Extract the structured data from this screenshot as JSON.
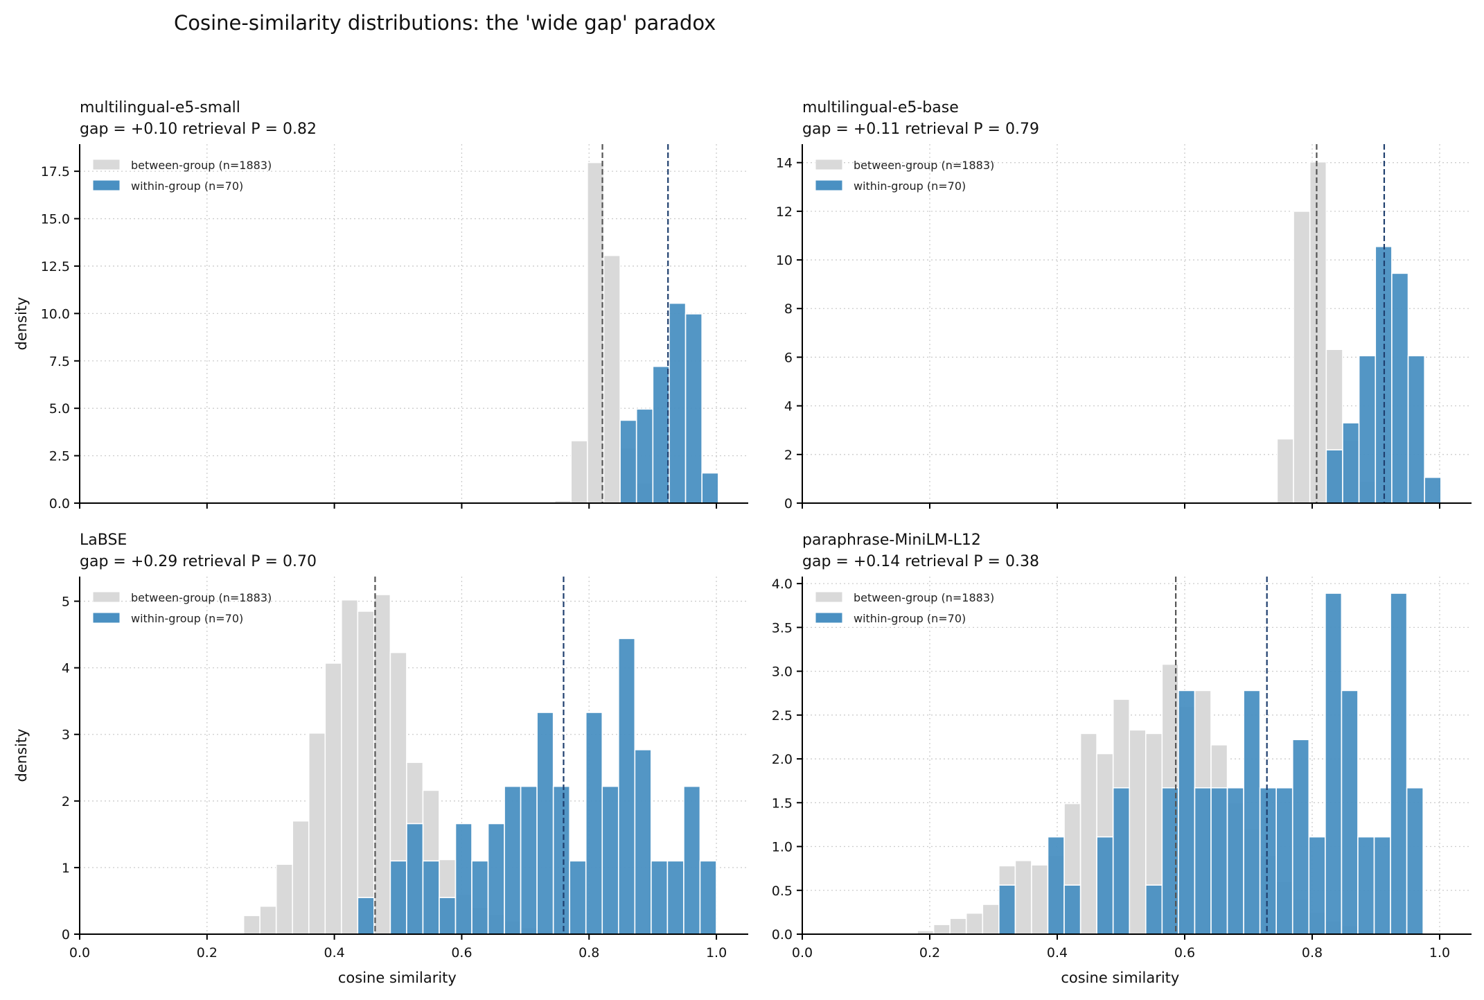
{
  "figure": {
    "title": "Cosine-similarity distributions: the 'wide gap' paradox"
  },
  "colors": {
    "between": "#d9d9d9",
    "within": "#4a90c2",
    "between_mean": "#555555",
    "within_mean": "#1f3f6e",
    "grid": "#cccccc"
  },
  "chart_data": [
    {
      "type": "bar",
      "subtype": "histogram",
      "title": "multilingual-e5-small",
      "subtitle": "gap = +0.10   retrieval P = 0.82",
      "xlabel": "",
      "ylabel": "density",
      "xlim": [
        0,
        1.05
      ],
      "ylim": [
        0,
        18.93
      ],
      "grid": true,
      "legend": "upper-left",
      "xticks": [
        0,
        0.2,
        0.4,
        0.6,
        0.8,
        1.0
      ],
      "xtick_labels": [],
      "yticks": [
        0,
        2.5,
        5,
        7.5,
        10,
        12.5,
        15,
        17.5
      ],
      "ytick_labels": [
        "0.0",
        "2.5",
        "5.0",
        "7.5",
        "10.0",
        "12.5",
        "15.0",
        "17.5"
      ],
      "bin_start": 0.746,
      "bin_width": 0.0257,
      "series": [
        {
          "name": "between-group (n=1883)",
          "mean": 0.821,
          "values": [
            0.13,
            3.29,
            17.96,
            13.06,
            2.9,
            1.07,
            0,
            0,
            0,
            0
          ]
        },
        {
          "name": "within-group (n=70)",
          "mean": 0.924,
          "values": [
            0,
            0,
            0,
            0,
            4.37,
            4.96,
            7.21,
            10.54,
            9.98,
            1.59
          ]
        }
      ]
    },
    {
      "type": "bar",
      "subtype": "histogram",
      "title": "multilingual-e5-base",
      "subtitle": "gap = +0.11   retrieval P = 0.79",
      "xlabel": "",
      "ylabel": "",
      "xlim": [
        0,
        1.05
      ],
      "ylim": [
        0,
        14.76
      ],
      "grid": true,
      "legend": "upper-left",
      "xticks": [
        0,
        0.2,
        0.4,
        0.6,
        0.8,
        1.0
      ],
      "xtick_labels": [],
      "yticks": [
        0,
        2,
        4,
        6,
        8,
        10,
        12,
        14
      ],
      "ytick_labels": [
        "0",
        "2",
        "4",
        "6",
        "8",
        "10",
        "12",
        "14"
      ],
      "bin_start": 0.745,
      "bin_width": 0.0257,
      "series": [
        {
          "name": "between-group (n=1883)",
          "mean": 0.807,
          "values": [
            2.64,
            12.0,
            14.03,
            6.32,
            2.6,
            0.9,
            0,
            0,
            0,
            0
          ]
        },
        {
          "name": "within-group (n=70)",
          "mean": 0.913,
          "values": [
            0,
            0,
            0,
            2.19,
            3.3,
            6.06,
            10.55,
            9.45,
            6.06,
            1.06
          ]
        }
      ]
    },
    {
      "type": "bar",
      "subtype": "histogram",
      "title": "LaBSE",
      "subtitle": "gap = +0.29   retrieval P = 0.70",
      "xlabel": "cosine similarity",
      "ylabel": "density",
      "xlim": [
        0,
        1.05
      ],
      "ylim": [
        0,
        5.37
      ],
      "grid": true,
      "legend": "upper-left",
      "xticks": [
        0,
        0.2,
        0.4,
        0.6,
        0.8,
        1.0
      ],
      "xtick_labels": [
        "0.0",
        "0.2",
        "0.4",
        "0.6",
        "0.8",
        "1.0"
      ],
      "yticks": [
        0,
        1,
        2,
        3,
        4,
        5
      ],
      "ytick_labels": [
        "0",
        "1",
        "2",
        "3",
        "4",
        "5"
      ],
      "bin_start": 0.2575,
      "bin_width": 0.0256,
      "series": [
        {
          "name": "between-group (n=1883)",
          "mean": 0.464,
          "values": [
            0.28,
            0.42,
            1.05,
            1.7,
            3.02,
            4.07,
            5.02,
            4.85,
            5.1,
            4.23,
            2.58,
            2.16,
            1.12,
            0.6,
            0.4,
            0.3,
            0.2,
            0.1,
            0.05,
            0,
            0,
            0,
            0,
            0,
            0,
            0,
            0,
            0,
            0
          ]
        },
        {
          "name": "within-group (n=70)",
          "mean": 0.76,
          "values": [
            0,
            0,
            0,
            0,
            0,
            0,
            0,
            0.55,
            0,
            1.1,
            1.66,
            1.1,
            0.55,
            1.66,
            1.1,
            1.66,
            2.22,
            2.22,
            3.33,
            2.22,
            1.1,
            3.33,
            2.22,
            4.44,
            2.77,
            1.1,
            1.1,
            2.22,
            1.1
          ]
        }
      ]
    },
    {
      "type": "bar",
      "subtype": "histogram",
      "title": "paraphrase-MiniLM-L12",
      "subtitle": "gap = +0.14   retrieval P = 0.38",
      "xlabel": "cosine similarity",
      "ylabel": "",
      "xlim": [
        0,
        1.05
      ],
      "ylim": [
        0,
        4.08
      ],
      "grid": true,
      "legend": "upper-left",
      "xticks": [
        0,
        0.2,
        0.4,
        0.6,
        0.8,
        1.0
      ],
      "xtick_labels": [
        "0.0",
        "0.2",
        "0.4",
        "0.6",
        "0.8",
        "1.0"
      ],
      "yticks": [
        0,
        0.5,
        1,
        1.5,
        2,
        2.5,
        3,
        3.5,
        4
      ],
      "ytick_labels": [
        "0.0",
        "0.5",
        "1.0",
        "1.5",
        "2.0",
        "2.5",
        "3.0",
        "3.5",
        "4.0"
      ],
      "bin_start": 0.1805,
      "bin_width": 0.0256,
      "series": [
        {
          "name": "between-group (n=1883)",
          "mean": 0.586,
          "values": [
            0.04,
            0.11,
            0.18,
            0.24,
            0.34,
            0.78,
            0.84,
            0.79,
            0.9,
            1.49,
            2.29,
            2.06,
            2.68,
            2.33,
            2.29,
            3.08,
            2.6,
            2.78,
            2.16,
            1.5,
            1.2,
            0.9,
            0.6,
            0.4,
            0.25,
            0.15,
            0.1,
            0.05,
            0.03,
            0.02,
            0.01
          ]
        },
        {
          "name": "within-group (n=70)",
          "mean": 0.729,
          "values": [
            0,
            0,
            0,
            0,
            0,
            0.56,
            0,
            0,
            1.11,
            0.56,
            0,
            1.11,
            1.67,
            0,
            0.56,
            1.67,
            2.78,
            1.67,
            1.67,
            1.67,
            2.78,
            1.67,
            1.67,
            2.22,
            1.11,
            3.89,
            2.78,
            1.11,
            1.11,
            3.89,
            1.67
          ]
        }
      ]
    }
  ]
}
